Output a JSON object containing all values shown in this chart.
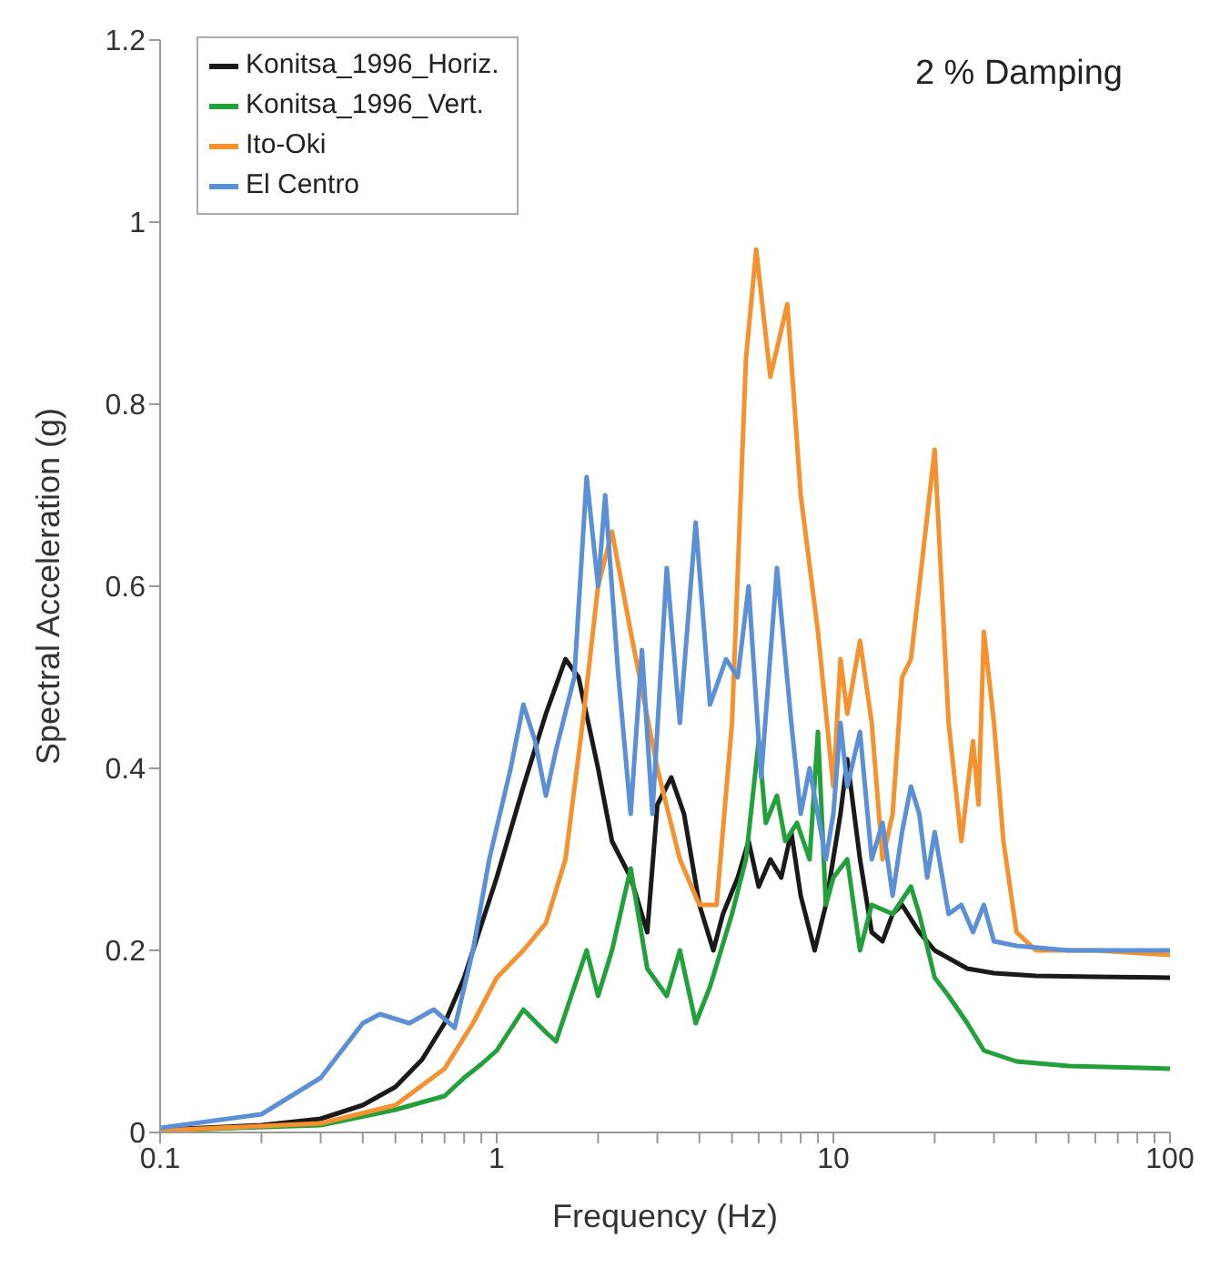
{
  "chart_data": {
    "type": "line",
    "xlabel": "Frequency (Hz)",
    "ylabel": "Spectral Acceleration (g)",
    "annotations": [
      "2 % Damping"
    ],
    "log": "x",
    "xlim": [
      0.1,
      100
    ],
    "ylim": [
      0,
      1.2
    ],
    "xticks": [
      0.1,
      {
        "value": 0.2,
        "label": null
      },
      {
        "value": 0.3,
        "label": null
      },
      {
        "value": 0.4,
        "label": null
      },
      {
        "value": 0.5,
        "label": null
      },
      {
        "value": 0.6,
        "label": null
      },
      {
        "value": 0.7,
        "label": null
      },
      {
        "value": 0.8,
        "label": null
      },
      {
        "value": 0.9,
        "label": null
      },
      1,
      {
        "value": 2,
        "label": null
      },
      {
        "value": 3,
        "label": null
      },
      {
        "value": 4,
        "label": null
      },
      {
        "value": 5,
        "label": null
      },
      {
        "value": 6,
        "label": null
      },
      {
        "value": 7,
        "label": null
      },
      {
        "value": 8,
        "label": null
      },
      {
        "value": 9,
        "label": null
      },
      10,
      {
        "value": 20,
        "label": null
      },
      {
        "value": 30,
        "label": null
      },
      {
        "value": 40,
        "label": null
      },
      {
        "value": 50,
        "label": null
      },
      {
        "value": 60,
        "label": null
      },
      {
        "value": 70,
        "label": null
      },
      {
        "value": 80,
        "label": null
      },
      {
        "value": 90,
        "label": null
      },
      100
    ],
    "yticks": [
      0,
      0.2,
      0.4,
      0.6,
      0.8,
      1,
      1.2
    ],
    "grid": false,
    "legend": "top left",
    "marker": "none",
    "line_style": "solid",
    "series": [
      {
        "name": "Konitsa_1996_Horiz.",
        "color": "#1a1a1a",
        "x": [
          0.1,
          0.2,
          0.3,
          0.4,
          0.5,
          0.6,
          0.7,
          0.8,
          1.0,
          1.2,
          1.4,
          1.6,
          1.75,
          2.0,
          2.2,
          2.5,
          2.8,
          3.0,
          3.3,
          3.6,
          4.0,
          4.4,
          4.7,
          5.2,
          5.6,
          6.0,
          6.5,
          7.0,
          7.5,
          8.0,
          8.8,
          9.5,
          10.5,
          11,
          12,
          13,
          14,
          15,
          16,
          18,
          20,
          25,
          30,
          40,
          60,
          100
        ],
        "values": [
          0.003,
          0.008,
          0.015,
          0.03,
          0.05,
          0.08,
          0.12,
          0.17,
          0.28,
          0.38,
          0.46,
          0.52,
          0.5,
          0.4,
          0.32,
          0.28,
          0.22,
          0.36,
          0.39,
          0.35,
          0.25,
          0.2,
          0.24,
          0.28,
          0.32,
          0.27,
          0.3,
          0.28,
          0.33,
          0.26,
          0.2,
          0.25,
          0.35,
          0.41,
          0.3,
          0.22,
          0.21,
          0.24,
          0.25,
          0.22,
          0.2,
          0.18,
          0.175,
          0.172,
          0.171,
          0.17
        ]
      },
      {
        "name": "Konitsa_1996_Vert.",
        "color": "#22a03a",
        "x": [
          0.1,
          0.3,
          0.5,
          0.7,
          0.8,
          0.9,
          1.0,
          1.2,
          1.4,
          1.5,
          1.7,
          1.85,
          2.0,
          2.2,
          2.5,
          2.8,
          3.2,
          3.5,
          3.9,
          4.3,
          5.0,
          5.5,
          6.0,
          6.3,
          6.8,
          7.2,
          7.8,
          8.5,
          9.0,
          9.5,
          10,
          11,
          12,
          13,
          15,
          17,
          18,
          20,
          22,
          25,
          28,
          35,
          50,
          100
        ],
        "values": [
          0.002,
          0.008,
          0.025,
          0.04,
          0.06,
          0.075,
          0.09,
          0.135,
          0.11,
          0.1,
          0.16,
          0.2,
          0.15,
          0.2,
          0.29,
          0.18,
          0.15,
          0.2,
          0.12,
          0.16,
          0.24,
          0.3,
          0.43,
          0.34,
          0.37,
          0.32,
          0.34,
          0.3,
          0.44,
          0.25,
          0.28,
          0.3,
          0.2,
          0.25,
          0.24,
          0.27,
          0.24,
          0.17,
          0.15,
          0.12,
          0.09,
          0.078,
          0.073,
          0.07
        ]
      },
      {
        "name": "Ito-Oki",
        "color": "#f5922f",
        "x": [
          0.1,
          0.3,
          0.5,
          0.7,
          0.85,
          1.0,
          1.2,
          1.4,
          1.6,
          1.8,
          2.0,
          2.2,
          2.5,
          3.0,
          3.5,
          4.0,
          4.5,
          5.0,
          5.5,
          5.9,
          6.5,
          7.3,
          8.0,
          9.0,
          10,
          10.5,
          11,
          12,
          13,
          14,
          15,
          16,
          17,
          18,
          20,
          22,
          24,
          26,
          27,
          28,
          30,
          32,
          35,
          40,
          60,
          100
        ],
        "values": [
          0.002,
          0.01,
          0.03,
          0.07,
          0.12,
          0.17,
          0.2,
          0.23,
          0.3,
          0.45,
          0.6,
          0.66,
          0.55,
          0.4,
          0.3,
          0.25,
          0.25,
          0.45,
          0.85,
          0.97,
          0.83,
          0.91,
          0.7,
          0.55,
          0.38,
          0.52,
          0.46,
          0.54,
          0.45,
          0.3,
          0.35,
          0.5,
          0.52,
          0.6,
          0.75,
          0.45,
          0.32,
          0.43,
          0.36,
          0.55,
          0.45,
          0.32,
          0.22,
          0.2,
          0.2,
          0.195
        ]
      },
      {
        "name": "El Centro",
        "color": "#5b8fd6",
        "x": [
          0.1,
          0.2,
          0.3,
          0.4,
          0.45,
          0.55,
          0.65,
          0.75,
          0.85,
          0.95,
          1.1,
          1.2,
          1.3,
          1.4,
          1.5,
          1.7,
          1.85,
          2.0,
          2.1,
          2.3,
          2.5,
          2.7,
          2.9,
          3.2,
          3.5,
          3.9,
          4.3,
          4.8,
          5.2,
          5.6,
          6.1,
          6.8,
          7.5,
          8.0,
          8.5,
          9.5,
          10,
          10.5,
          11,
          12,
          13,
          14,
          15,
          16,
          17,
          18,
          19,
          20,
          22,
          24,
          26,
          28,
          30,
          35,
          50,
          100
        ],
        "values": [
          0.005,
          0.02,
          0.06,
          0.12,
          0.13,
          0.12,
          0.135,
          0.115,
          0.2,
          0.3,
          0.4,
          0.47,
          0.43,
          0.37,
          0.42,
          0.5,
          0.72,
          0.6,
          0.7,
          0.5,
          0.35,
          0.53,
          0.35,
          0.62,
          0.45,
          0.67,
          0.47,
          0.52,
          0.5,
          0.6,
          0.39,
          0.62,
          0.45,
          0.35,
          0.4,
          0.3,
          0.35,
          0.45,
          0.38,
          0.44,
          0.3,
          0.34,
          0.26,
          0.33,
          0.38,
          0.35,
          0.28,
          0.33,
          0.24,
          0.25,
          0.22,
          0.25,
          0.21,
          0.205,
          0.2,
          0.2
        ]
      }
    ]
  }
}
